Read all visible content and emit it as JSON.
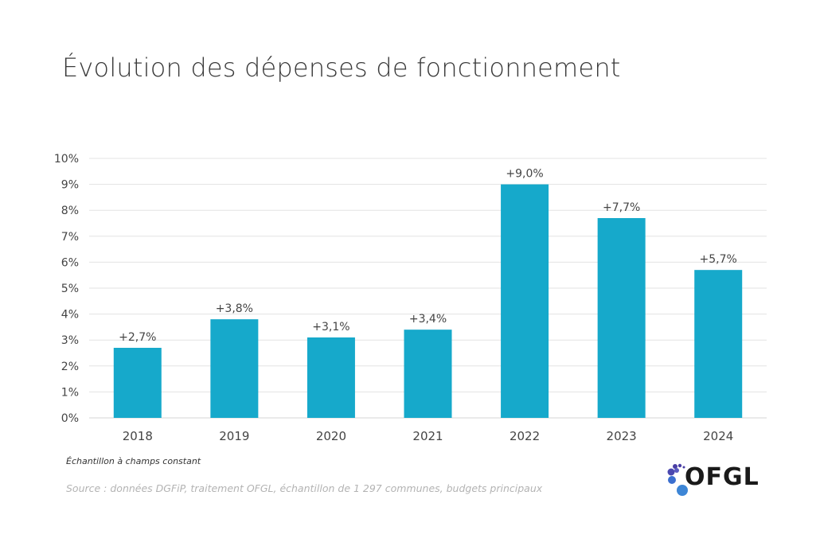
{
  "header": {
    "title": "Évolution des dépenses de fonctionnement"
  },
  "chart_data": {
    "type": "bar",
    "title": "Évolution des dépenses de fonctionnement",
    "xlabel": "",
    "ylabel": "",
    "categories": [
      "2018",
      "2019",
      "2020",
      "2021",
      "2022",
      "2023",
      "2024"
    ],
    "values": [
      2.7,
      3.8,
      3.1,
      3.4,
      9.0,
      7.7,
      5.7
    ],
    "data_labels": [
      "+2,7%",
      "+3,8%",
      "+3,1%",
      "+3,4%",
      "+9,0%",
      "+7,7%",
      "+5,7%"
    ],
    "ylim": [
      0,
      10
    ],
    "yticks": [
      0,
      1,
      2,
      3,
      4,
      5,
      6,
      7,
      8,
      9,
      10
    ],
    "ytick_labels": [
      "0%",
      "1%",
      "2%",
      "3%",
      "4%",
      "5%",
      "6%",
      "7%",
      "8%",
      "9%",
      "10%"
    ],
    "grid": true,
    "legend": "none",
    "bar_color": "#16a9cb",
    "grid_color": "#e3e3e3"
  },
  "footer": {
    "note": "Échantillon à champs constant",
    "source": "Source : données DGFiP, traitement OFGL, échantillon de 1 297 communes, budgets principaux",
    "logo_text": "OFGL"
  }
}
